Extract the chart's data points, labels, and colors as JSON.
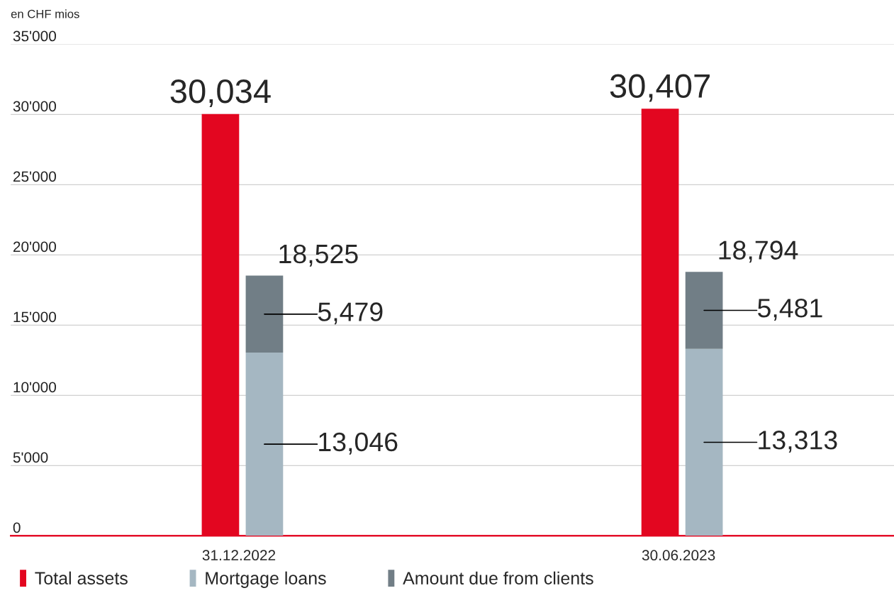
{
  "chart_data": [
    {
      "type": "bar",
      "ylabel": "en CHF mios",
      "categories": [
        "31.12.2022",
        "30.06.2023"
      ],
      "series": [
        {
          "name": "Total assets",
          "color": "#e30620",
          "values": [
            30034,
            30407
          ],
          "value_labels": [
            "30,034",
            "30,407"
          ]
        }
      ],
      "ylim": [
        0,
        35000
      ],
      "yticks": [
        {
          "value": 0,
          "label": "0"
        },
        {
          "value": 5000,
          "label": "5'000"
        },
        {
          "value": 10000,
          "label": "10'000"
        },
        {
          "value": 15000,
          "label": "15'000"
        },
        {
          "value": 20000,
          "label": "20'000"
        },
        {
          "value": 25000,
          "label": "25'000"
        },
        {
          "value": 30000,
          "label": "30'000"
        },
        {
          "value": 35000,
          "label": "35'000"
        }
      ],
      "grid": "y",
      "legend": "bottom"
    },
    {
      "type": "bar",
      "categories": [
        "31.12.2022",
        "30.06.2023"
      ],
      "stacked": true,
      "series": [
        {
          "name": "Mortgage loans",
          "color": "#a5b7c2",
          "values": [
            13046,
            13313
          ],
          "value_labels": [
            "13,046",
            "13,313"
          ]
        },
        {
          "name": "Amount due from clients",
          "color": "#717e86",
          "values": [
            5479,
            5481
          ],
          "value_labels": [
            "5,479",
            "5,481"
          ]
        }
      ],
      "totals": [
        "18,525",
        "18,794"
      ],
      "ylim": [
        0,
        35000
      ],
      "tick_labels": false,
      "legend": "bottom"
    }
  ]
}
